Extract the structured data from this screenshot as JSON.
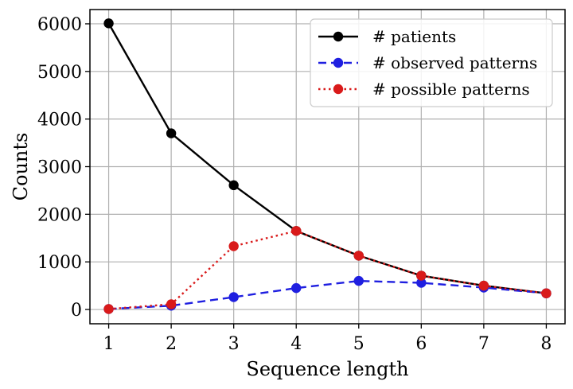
{
  "chart_data": {
    "type": "line",
    "xlabel": "Sequence length",
    "ylabel": "Counts",
    "x": [
      1,
      2,
      3,
      4,
      5,
      6,
      7,
      8
    ],
    "xlim": [
      0.7,
      8.3
    ],
    "ylim": [
      -300,
      6300
    ],
    "xticks": [
      "1",
      "2",
      "3",
      "4",
      "5",
      "6",
      "7",
      "8"
    ],
    "yticks": [
      "0",
      "1000",
      "2000",
      "3000",
      "4000",
      "5000",
      "6000"
    ],
    "grid": true,
    "legend_position": "top-right",
    "series": [
      {
        "name": "# patients",
        "color": "#000000",
        "style": "solid",
        "values": [
          6010,
          3700,
          2610,
          1650,
          1130,
          710,
          500,
          340
        ]
      },
      {
        "name": "# observed patterns",
        "color": "#1f1fe0",
        "style": "dashed",
        "values": [
          10,
          80,
          260,
          450,
          600,
          560,
          460,
          340
        ]
      },
      {
        "name": "# possible patterns",
        "color": "#d91a1a",
        "style": "dotted",
        "values": [
          10,
          110,
          1330,
          1650,
          1130,
          710,
          500,
          340
        ]
      }
    ]
  }
}
